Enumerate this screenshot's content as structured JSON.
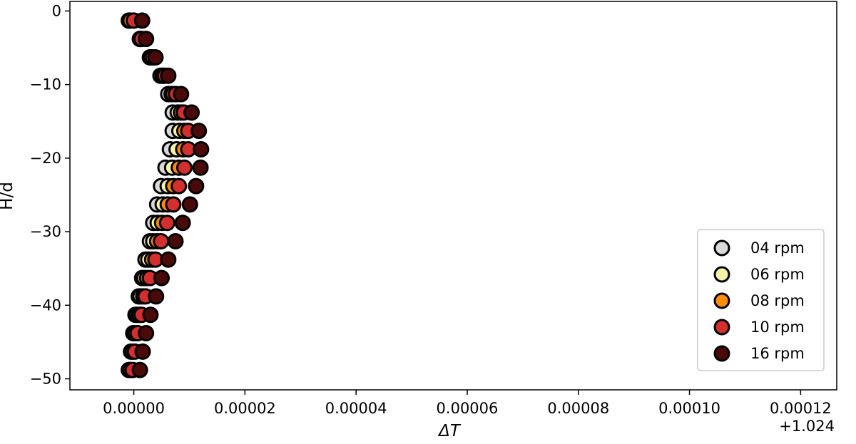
{
  "chart_data": {
    "type": "scatter",
    "xlabel": "ΔT",
    "ylabel": "H/d",
    "x_offset_label": "+1.024",
    "xlim": [
      -1.15e-05,
      0.0001265
    ],
    "ylim": [
      -51.5,
      1.3
    ],
    "xticks": [
      0.0,
      2e-05,
      4e-05,
      6e-05,
      8e-05,
      0.0001,
      0.00012
    ],
    "xtick_labels": [
      "0.00000",
      "0.00002",
      "0.00004",
      "0.00006",
      "0.00008",
      "0.00010",
      "0.00012"
    ],
    "yticks": [
      0,
      -10,
      -20,
      -30,
      -40,
      -50
    ],
    "ytick_labels": [
      "0",
      "−10",
      "−20",
      "−30",
      "−40",
      "−50"
    ],
    "grid": false,
    "legend_position": "lower right",
    "series": [
      {
        "name": "04 rpm",
        "color": "#d9d9d9",
        "points": [
          [
            -9e-07,
            -1.3
          ],
          [
            1.1e-06,
            -3.8
          ],
          [
            2.9e-06,
            -6.3
          ],
          [
            4.8e-06,
            -8.8
          ],
          [
            6.2e-06,
            -11.3
          ],
          [
            7e-06,
            -13.8
          ],
          [
            7e-06,
            -16.3
          ],
          [
            6.5e-06,
            -18.8
          ],
          [
            5.7e-06,
            -21.3
          ],
          [
            4.9e-06,
            -23.8
          ],
          [
            4.2e-06,
            -26.3
          ],
          [
            3.5e-06,
            -28.8
          ],
          [
            2.9e-06,
            -31.3
          ],
          [
            2.1e-06,
            -33.8
          ],
          [
            1.5e-06,
            -36.3
          ],
          [
            9e-07,
            -38.8
          ],
          [
            3e-07,
            -41.3
          ],
          [
            -1e-07,
            -43.8
          ],
          [
            -9e-07,
            -48.8
          ]
        ]
      },
      {
        "name": "06 rpm",
        "color": "#f9f3a6",
        "points": [
          [
            -8e-07,
            -1.3
          ],
          [
            1.1e-06,
            -3.8
          ],
          [
            3e-06,
            -6.3
          ],
          [
            5.2e-06,
            -8.8
          ],
          [
            6.8e-06,
            -11.3
          ],
          [
            7.9e-06,
            -13.8
          ],
          [
            8.2e-06,
            -16.3
          ],
          [
            7.7e-06,
            -18.8
          ],
          [
            6.9e-06,
            -21.3
          ],
          [
            6.1e-06,
            -23.8
          ],
          [
            5.2e-06,
            -26.3
          ],
          [
            4.3e-06,
            -28.8
          ],
          [
            3.5e-06,
            -31.3
          ],
          [
            2.6e-06,
            -33.8
          ],
          [
            1.9e-06,
            -36.3
          ],
          [
            1.2e-06,
            -38.8
          ],
          [
            6e-07,
            -41.3
          ],
          [
            0.0,
            -43.8
          ],
          [
            -5e-07,
            -46.3
          ]
        ]
      },
      {
        "name": "08 rpm",
        "color": "#ff8c0a",
        "points": [
          [
            -6e-07,
            -1.3
          ],
          [
            1.2e-06,
            -3.8
          ],
          [
            3.2e-06,
            -6.3
          ],
          [
            5.3e-06,
            -8.8
          ],
          [
            7.1e-06,
            -11.3
          ],
          [
            8.5e-06,
            -13.8
          ],
          [
            9.1e-06,
            -16.3
          ],
          [
            8.9e-06,
            -18.8
          ],
          [
            8.1e-06,
            -21.3
          ],
          [
            7.1e-06,
            -23.8
          ],
          [
            6.1e-06,
            -26.3
          ],
          [
            5.1e-06,
            -28.8
          ],
          [
            4.2e-06,
            -31.3
          ],
          [
            3.3e-06,
            -33.8
          ],
          [
            2.4e-06,
            -36.3
          ],
          [
            1.7e-06,
            -38.8
          ],
          [
            1e-06,
            -41.3
          ],
          [
            3e-07,
            -43.8
          ],
          [
            -2e-07,
            -46.3
          ],
          [
            -6e-07,
            -48.8
          ]
        ]
      },
      {
        "name": "10 rpm",
        "color": "#d42f2f",
        "points": [
          [
            0.0,
            -1.3
          ],
          [
            1.4e-06,
            -3.8
          ],
          [
            3.4e-06,
            -6.3
          ],
          [
            5.6e-06,
            -8.8
          ],
          [
            7.6e-06,
            -11.3
          ],
          [
            9e-06,
            -13.8
          ],
          [
            9.8e-06,
            -16.3
          ],
          [
            9.8e-06,
            -18.8
          ],
          [
            9.1e-06,
            -21.3
          ],
          [
            8.1e-06,
            -23.8
          ],
          [
            7.1e-06,
            -26.3
          ],
          [
            6e-06,
            -28.8
          ],
          [
            4.9e-06,
            -31.3
          ],
          [
            3.9e-06,
            -33.8
          ],
          [
            2.9e-06,
            -36.3
          ],
          [
            2.1e-06,
            -38.8
          ],
          [
            1.4e-06,
            -41.3
          ],
          [
            7e-07,
            -43.8
          ],
          [
            2e-07,
            -46.3
          ],
          [
            -2e-07,
            -48.8
          ]
        ]
      },
      {
        "name": "16 rpm",
        "color": "#4a0a0a",
        "points": [
          [
            1.5e-06,
            -1.3
          ],
          [
            2.2e-06,
            -3.8
          ],
          [
            3.9e-06,
            -6.3
          ],
          [
            6.2e-06,
            -8.8
          ],
          [
            8.5e-06,
            -11.3
          ],
          [
            1.04e-05,
            -13.8
          ],
          [
            1.17e-05,
            -16.3
          ],
          [
            1.21e-05,
            -18.8
          ],
          [
            1.2e-05,
            -21.3
          ],
          [
            1.12e-05,
            -23.8
          ],
          [
            1.01e-05,
            -26.3
          ],
          [
            8.8e-06,
            -28.8
          ],
          [
            7.5e-06,
            -31.3
          ],
          [
            6.2e-06,
            -33.8
          ],
          [
            5e-06,
            -36.3
          ],
          [
            4e-06,
            -38.8
          ],
          [
            3e-06,
            -41.3
          ],
          [
            2.2e-06,
            -43.8
          ],
          [
            1.6e-06,
            -46.3
          ],
          [
            1.1e-06,
            -48.8
          ]
        ]
      }
    ]
  }
}
